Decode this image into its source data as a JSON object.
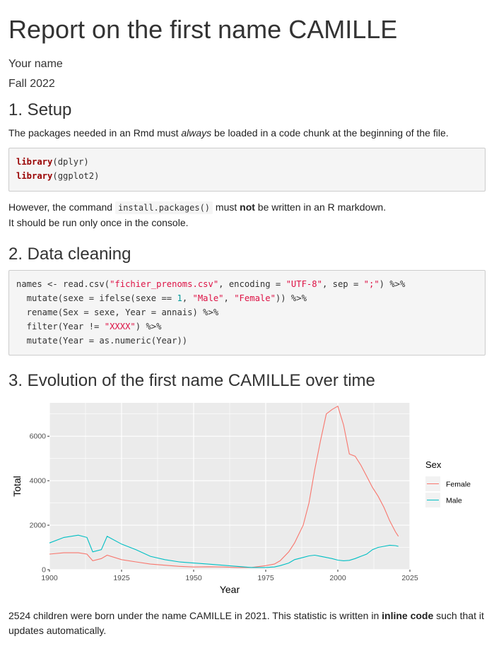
{
  "title": "Report on the first name CAMILLE",
  "author": "Your name",
  "date": "Fall 2022",
  "sections": {
    "setup": {
      "heading": "1. Setup",
      "intro_before": "The packages needed in an Rmd must ",
      "intro_em": "always",
      "intro_after": " be loaded in a code chunk at the beginning of the file.",
      "code": [
        "library(dplyr)",
        "library(ggplot2)"
      ],
      "note1_before": "However, the command ",
      "note1_code": "install.packages()",
      "note1_mid": " must ",
      "note1_strong": "not",
      "note1_after": " be written in an R markdown.",
      "note2": "It should be run only once in the console."
    },
    "cleaning": {
      "heading": "2. Data cleaning",
      "code": [
        "names <- read.csv(\"fichier_prenoms.csv\", encoding = \"UTF-8\", sep = \";\") %>%",
        "  mutate(sexe = ifelse(sexe == 1, \"Male\", \"Female\")) %>%",
        "  rename(Sex = sexe, Year = annais) %>%",
        "  filter(Year != \"XXXX\") %>%",
        "  mutate(Year = as.numeric(Year))"
      ]
    },
    "evolution": {
      "heading": "3. Evolution of the first name CAMILLE over time",
      "summary_before": "2524 children were born under the name CAMILLE in 2021. This statistic is written in ",
      "summary_strong": "inline code",
      "summary_after": " such that it updates automatically."
    }
  },
  "colors": {
    "female": "#F8766D",
    "male": "#00BFC4",
    "panel": "#EBEBEB",
    "grid": "#FFFFFF"
  },
  "chart_data": {
    "type": "line",
    "xlabel": "Year",
    "ylabel": "Total",
    "xlim": [
      1900,
      2025
    ],
    "ylim": [
      0,
      7500
    ],
    "xticks": [
      1900,
      1925,
      1950,
      1975,
      2000,
      2025
    ],
    "yticks": [
      0,
      2000,
      4000,
      6000
    ],
    "legend": {
      "title": "Sex",
      "position": "right"
    },
    "grid": true,
    "x": [
      1900,
      1905,
      1910,
      1913,
      1915,
      1918,
      1920,
      1925,
      1930,
      1935,
      1940,
      1945,
      1950,
      1955,
      1960,
      1965,
      1970,
      1975,
      1978,
      1980,
      1983,
      1985,
      1988,
      1990,
      1992,
      1994,
      1996,
      1998,
      2000,
      2002,
      2004,
      2006,
      2008,
      2010,
      2012,
      2014,
      2016,
      2018,
      2020,
      2021
    ],
    "series": [
      {
        "name": "Female",
        "values": [
          700,
          760,
          760,
          700,
          400,
          500,
          650,
          450,
          350,
          250,
          200,
          150,
          120,
          130,
          120,
          100,
          100,
          180,
          250,
          400,
          800,
          1200,
          2000,
          3000,
          4500,
          5800,
          7000,
          7200,
          7350,
          6500,
          5200,
          5100,
          4700,
          4200,
          3700,
          3300,
          2800,
          2200,
          1700,
          1500
        ]
      },
      {
        "name": "Male",
        "values": [
          1200,
          1450,
          1550,
          1450,
          800,
          900,
          1500,
          1150,
          900,
          600,
          450,
          350,
          300,
          250,
          200,
          150,
          100,
          100,
          120,
          180,
          300,
          450,
          550,
          620,
          650,
          600,
          550,
          500,
          430,
          400,
          420,
          500,
          600,
          700,
          900,
          1000,
          1050,
          1100,
          1080,
          1050
        ]
      }
    ]
  }
}
